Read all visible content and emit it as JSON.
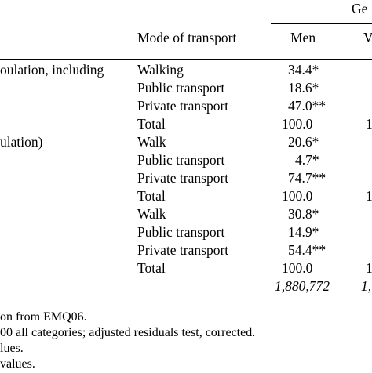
{
  "table": {
    "group_header": "Ge",
    "col_mode_header": "Mode of transport",
    "col_men_header": "Men",
    "col_women_header_fragment": "V",
    "groups": [
      {
        "label_lines": [
          "oulation, including",
          ""
        ],
        "rows": [
          {
            "mode": "Walking",
            "men": "34.4*",
            "women": ""
          },
          {
            "mode": "Public transport",
            "men": "18.6*",
            "women": ""
          },
          {
            "mode": "Private transport",
            "men": "47.0**",
            "women": ""
          },
          {
            "mode": "Total",
            "men": "100.0",
            "women": "1"
          }
        ]
      },
      {
        "label_lines": [
          "ulation)"
        ],
        "rows": [
          {
            "mode": "Walk",
            "men": "20.6*",
            "women": ""
          },
          {
            "mode": "Public transport",
            "men": "4.7*",
            "women": ""
          },
          {
            "mode": "Private transport",
            "men": "74.7**",
            "women": ""
          },
          {
            "mode": "Total",
            "men": "100.0",
            "women": "1"
          }
        ]
      },
      {
        "label_lines": [],
        "rows": [
          {
            "mode": "Walk",
            "men": "30.8*",
            "women": ""
          },
          {
            "mode": "Public transport",
            "men": "14.9*",
            "women": ""
          },
          {
            "mode": "Private transport",
            "men": "54.4**",
            "women": ""
          },
          {
            "mode": "Total",
            "men": "100.0",
            "women": "1"
          }
        ]
      }
    ],
    "n_row": {
      "men": "1,880,772",
      "women": "1,"
    }
  },
  "footnotes": [
    "on from EMQ06.",
    "00 all categories; adjusted residuals test, corrected.",
    "lues.",
    "values."
  ]
}
